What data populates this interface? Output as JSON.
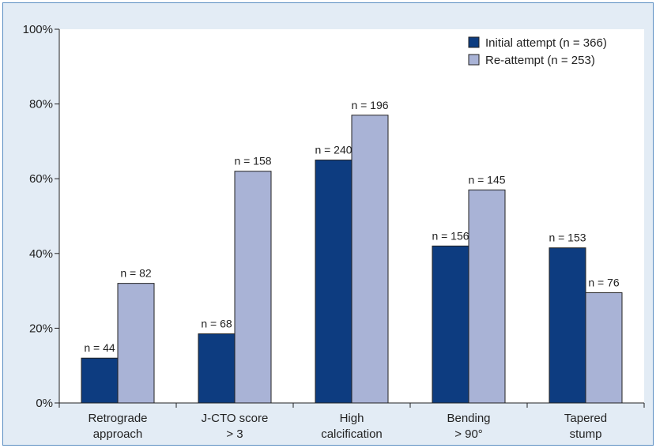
{
  "chart_data": {
    "type": "bar",
    "title": "",
    "xlabel": "",
    "ylabel": "",
    "ylim": [
      0,
      100
    ],
    "yticks": [
      "0%",
      "20%",
      "40%",
      "60%",
      "80%",
      "100%"
    ],
    "categories": [
      [
        "Retrograde",
        "approach"
      ],
      [
        "J-CTO score",
        "> 3"
      ],
      [
        "High",
        "calcification"
      ],
      [
        "Bending",
        "> 90°"
      ],
      [
        "Tapered",
        "stump"
      ]
    ],
    "series": [
      {
        "name": "Initial attempt (n = 366)",
        "color": "#0d3c80",
        "values": [
          12,
          18.5,
          65,
          42,
          41.5
        ],
        "labels": [
          "n = 44",
          "n = 68",
          "n = 240",
          "n = 156",
          "n = 153"
        ]
      },
      {
        "name": "Re-attempt (n = 253)",
        "color": "#a9b3d6",
        "values": [
          32,
          62,
          77,
          57,
          29.5
        ],
        "labels": [
          "n = 82",
          "n = 158",
          "n = 196",
          "n = 145",
          "n = 76"
        ]
      }
    ],
    "legend_position": "top-right",
    "grid": false
  }
}
